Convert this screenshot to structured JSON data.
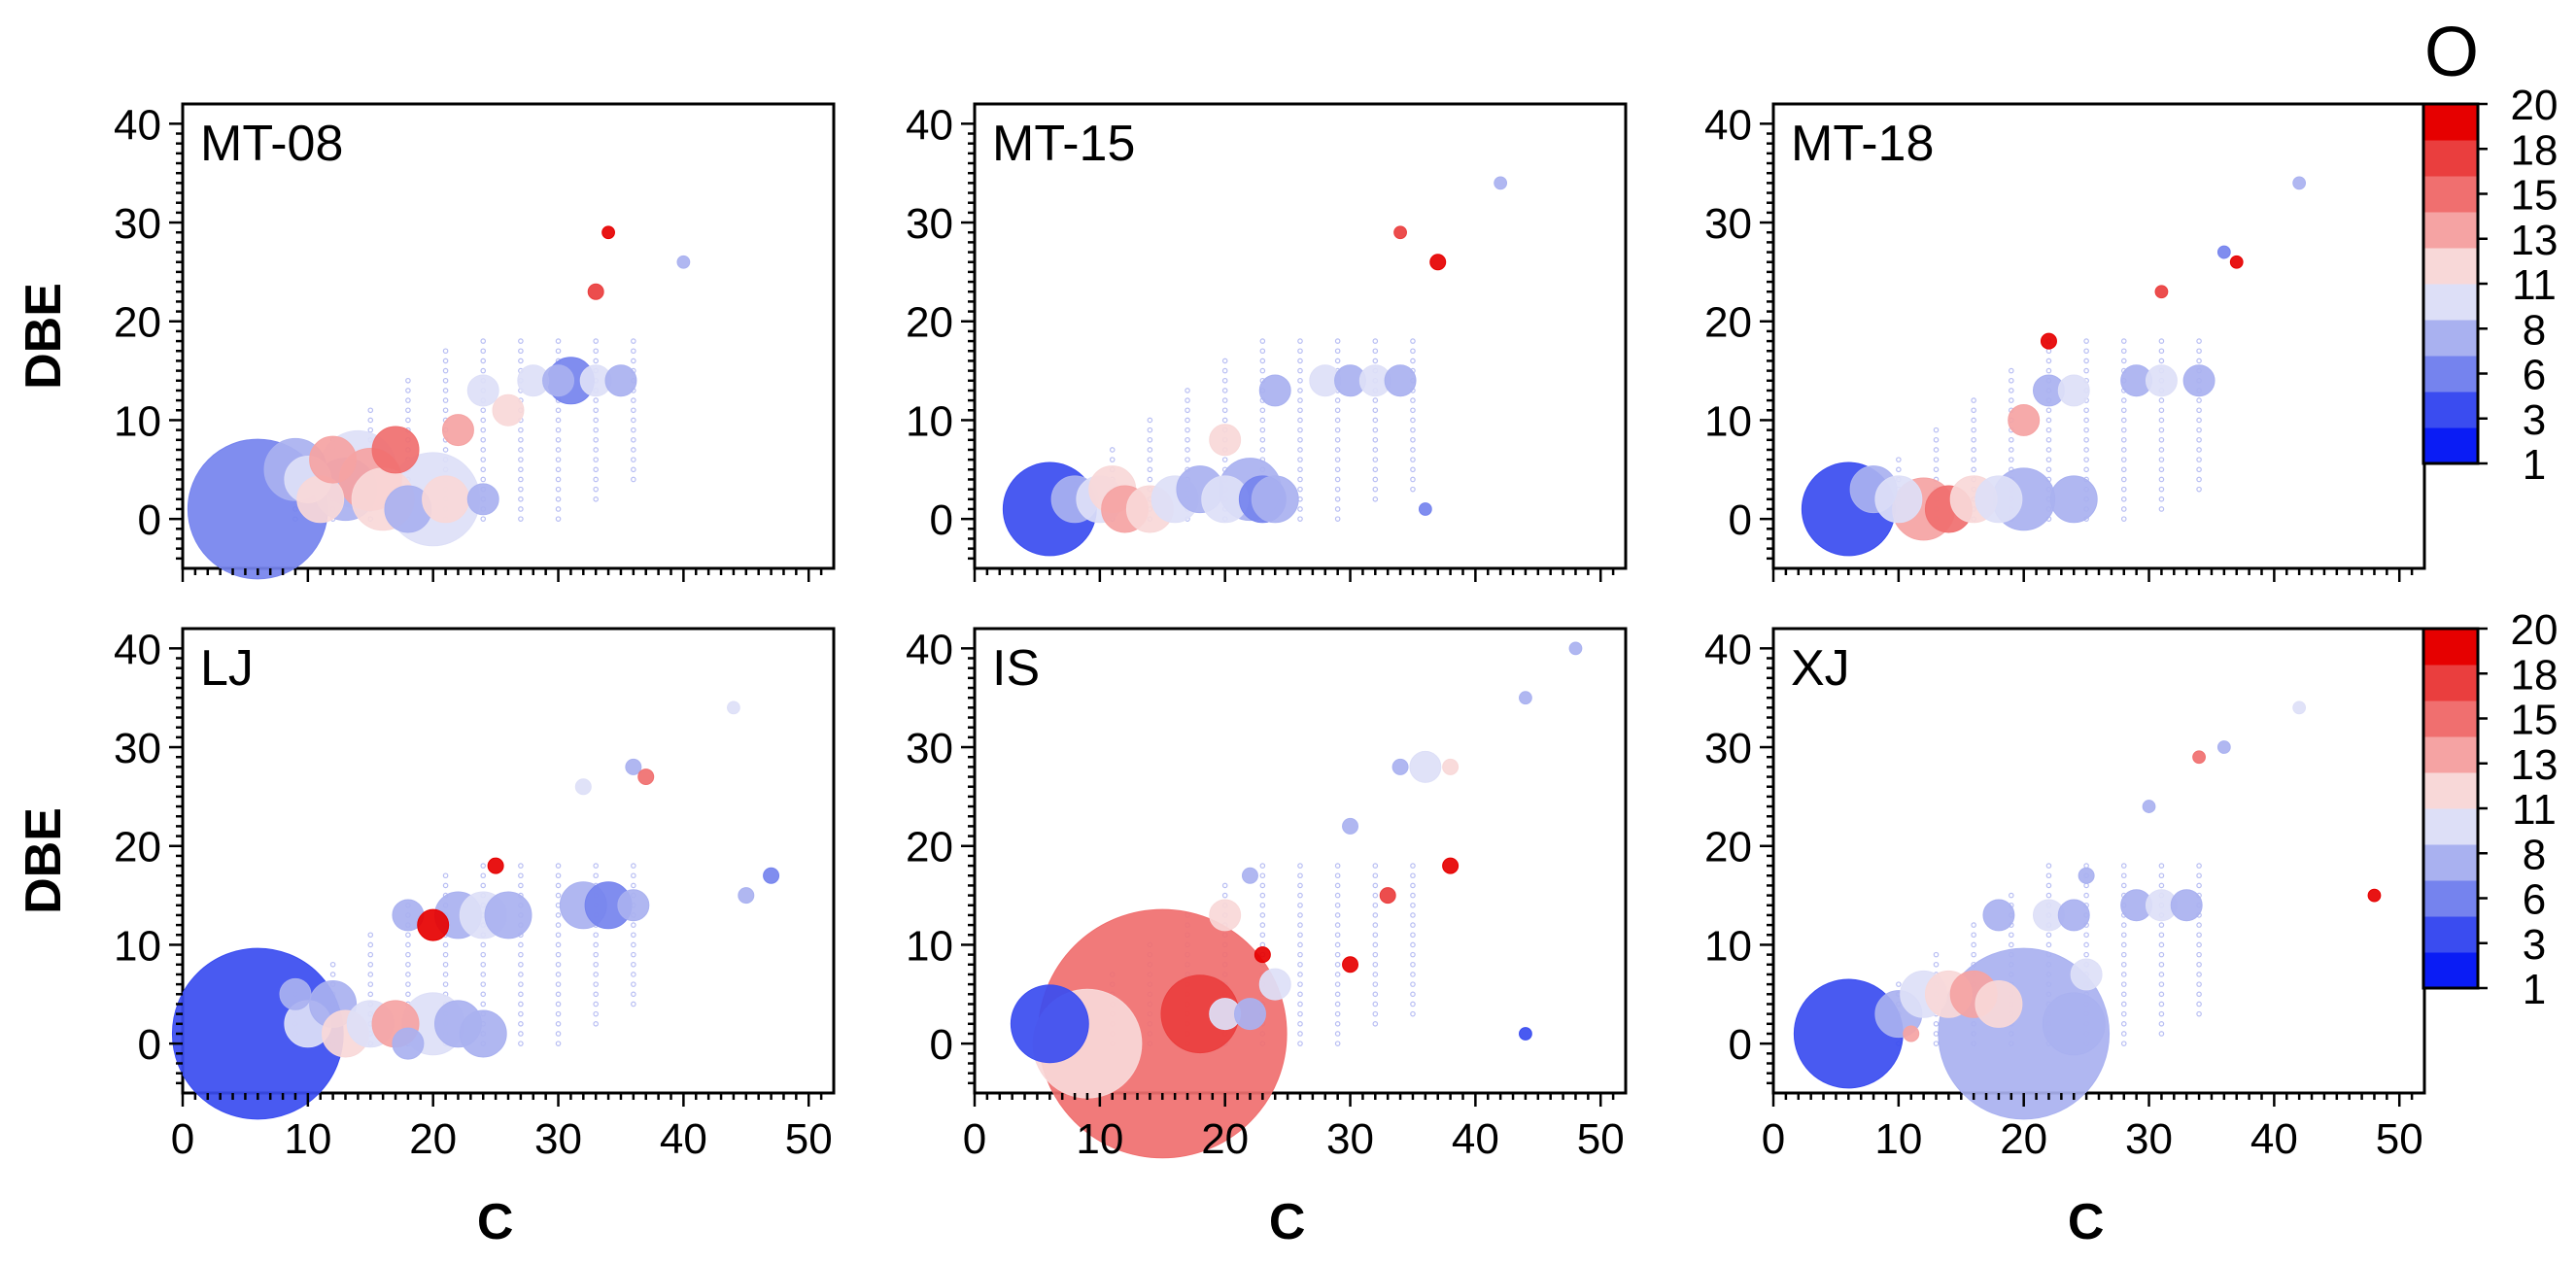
{
  "chart_data": {
    "type": "scatter",
    "subtype": "bubble",
    "x_axis": {
      "label": "C",
      "range": [
        0,
        52
      ],
      "ticks": [
        "0",
        "10",
        "20",
        "30",
        "40",
        "50"
      ]
    },
    "y_axis": {
      "label": "DBE",
      "range": [
        -5,
        42
      ],
      "ticks": [
        "0",
        "10",
        "20",
        "30",
        "40"
      ]
    },
    "colorbar": {
      "title": "O",
      "tick_labels": [
        "1",
        "3",
        "6",
        "8",
        "11",
        "13",
        "15",
        "18",
        "20"
      ],
      "colors": [
        "#0a1cf5",
        "#3a4cf0",
        "#7583ee",
        "#a9b1f0",
        "#dddff7",
        "#f8d8d8",
        "#f5a3a3",
        "#f06f6f",
        "#ea3e3e",
        "#e60000"
      ]
    },
    "panels": [
      {
        "label": "MT-08",
        "points": [
          [
            6,
            1,
            9,
            2
          ],
          [
            9,
            5,
            4,
            3
          ],
          [
            10,
            4,
            3,
            4
          ],
          [
            11,
            2,
            3,
            5
          ],
          [
            12,
            6,
            3,
            6
          ],
          [
            13,
            3,
            4,
            3
          ],
          [
            14,
            5,
            5,
            4
          ],
          [
            15,
            4,
            4,
            6
          ],
          [
            16,
            2,
            4,
            5
          ],
          [
            17,
            7,
            3,
            7
          ],
          [
            18,
            1,
            3,
            3
          ],
          [
            20,
            2,
            6,
            4
          ],
          [
            21,
            2,
            3,
            5
          ],
          [
            22,
            9,
            2,
            6
          ],
          [
            24,
            2,
            2,
            3
          ],
          [
            24,
            13,
            2,
            4
          ],
          [
            26,
            11,
            2,
            5
          ],
          [
            28,
            14,
            2,
            4
          ],
          [
            30,
            14,
            2,
            3
          ],
          [
            31,
            14,
            3,
            2
          ],
          [
            33,
            14,
            2,
            4
          ],
          [
            35,
            14,
            2,
            3
          ],
          [
            34,
            29,
            0.8,
            9
          ],
          [
            33,
            23,
            1,
            8
          ],
          [
            40,
            26,
            0.8,
            3
          ]
        ]
      },
      {
        "label": "MT-15",
        "points": [
          [
            6,
            1,
            6,
            1
          ],
          [
            8,
            2,
            3,
            3
          ],
          [
            10,
            2,
            3,
            4
          ],
          [
            11,
            3,
            3,
            5
          ],
          [
            12,
            1,
            3,
            6
          ],
          [
            14,
            1,
            3,
            5
          ],
          [
            16,
            2,
            3,
            4
          ],
          [
            18,
            3,
            3,
            3
          ],
          [
            20,
            2,
            3,
            4
          ],
          [
            22,
            3,
            4,
            3
          ],
          [
            23,
            2,
            3,
            2
          ],
          [
            24,
            2,
            3,
            3
          ],
          [
            20,
            8,
            2,
            5
          ],
          [
            24,
            13,
            2,
            3
          ],
          [
            28,
            14,
            2,
            4
          ],
          [
            30,
            14,
            2,
            3
          ],
          [
            32,
            14,
            2,
            4
          ],
          [
            34,
            14,
            2,
            3
          ],
          [
            37,
            26,
            1,
            9
          ],
          [
            34,
            29,
            0.8,
            8
          ],
          [
            42,
            34,
            0.8,
            3
          ],
          [
            36,
            1,
            0.8,
            2
          ]
        ]
      },
      {
        "label": "MT-18",
        "points": [
          [
            6,
            1,
            6,
            1
          ],
          [
            8,
            3,
            3,
            3
          ],
          [
            10,
            2,
            3,
            4
          ],
          [
            12,
            1,
            4,
            6
          ],
          [
            14,
            1,
            3,
            7
          ],
          [
            16,
            2,
            3,
            5
          ],
          [
            18,
            2,
            3,
            4
          ],
          [
            20,
            2,
            4,
            3
          ],
          [
            24,
            2,
            3,
            3
          ],
          [
            20,
            10,
            2,
            6
          ],
          [
            22,
            13,
            2,
            3
          ],
          [
            24,
            13,
            2,
            4
          ],
          [
            22,
            18,
            1,
            9
          ],
          [
            29,
            14,
            2,
            3
          ],
          [
            31,
            14,
            2,
            4
          ],
          [
            34,
            14,
            2,
            3
          ],
          [
            31,
            23,
            0.8,
            8
          ],
          [
            37,
            26,
            0.8,
            9
          ],
          [
            42,
            34,
            0.8,
            3
          ],
          [
            36,
            27,
            0.8,
            2
          ]
        ]
      },
      {
        "label": "LJ",
        "points": [
          [
            6,
            1,
            11,
            1
          ],
          [
            9,
            5,
            2,
            3
          ],
          [
            10,
            2,
            3,
            4
          ],
          [
            12,
            4,
            3,
            3
          ],
          [
            13,
            1,
            3,
            5
          ],
          [
            15,
            2,
            3,
            4
          ],
          [
            17,
            2,
            3,
            6
          ],
          [
            18,
            0,
            2,
            3
          ],
          [
            20,
            2,
            4,
            4
          ],
          [
            22,
            2,
            3,
            3
          ],
          [
            24,
            1,
            3,
            3
          ],
          [
            18,
            13,
            2,
            3
          ],
          [
            20,
            12,
            2,
            9
          ],
          [
            22,
            13,
            3,
            3
          ],
          [
            24,
            13,
            3,
            4
          ],
          [
            26,
            13,
            3,
            3
          ],
          [
            25,
            18,
            1,
            9
          ],
          [
            32,
            14,
            3,
            3
          ],
          [
            34,
            14,
            3,
            2
          ],
          [
            36,
            14,
            2,
            3
          ],
          [
            47,
            17,
            1,
            2
          ],
          [
            45,
            15,
            1,
            3
          ],
          [
            36,
            28,
            1,
            3
          ],
          [
            37,
            27,
            1,
            7
          ],
          [
            44,
            34,
            0.8,
            4
          ],
          [
            32,
            26,
            1,
            4
          ]
        ]
      },
      {
        "label": "IS",
        "points": [
          [
            6,
            2,
            5,
            1
          ],
          [
            9,
            0,
            7,
            5
          ],
          [
            15,
            1,
            16,
            7
          ],
          [
            18,
            3,
            5,
            8
          ],
          [
            20,
            3,
            2,
            4
          ],
          [
            22,
            3,
            2,
            3
          ],
          [
            20,
            13,
            2,
            5
          ],
          [
            22,
            17,
            1,
            3
          ],
          [
            24,
            6,
            2,
            4
          ],
          [
            30,
            8,
            1,
            9
          ],
          [
            33,
            15,
            1,
            8
          ],
          [
            34,
            28,
            1,
            3
          ],
          [
            36,
            28,
            2,
            4
          ],
          [
            38,
            28,
            1,
            5
          ],
          [
            48,
            40,
            0.8,
            3
          ],
          [
            44,
            35,
            0.8,
            3
          ],
          [
            44,
            1,
            0.8,
            1
          ],
          [
            30,
            22,
            1,
            3
          ],
          [
            38,
            18,
            1,
            9
          ],
          [
            23,
            9,
            1,
            9
          ]
        ]
      },
      {
        "label": "XJ",
        "points": [
          [
            6,
            1,
            7,
            1
          ],
          [
            10,
            3,
            3,
            3
          ],
          [
            12,
            5,
            3,
            4
          ],
          [
            14,
            5,
            3,
            5
          ],
          [
            16,
            5,
            3,
            6
          ],
          [
            18,
            4,
            3,
            5
          ],
          [
            20,
            1,
            11,
            3
          ],
          [
            24,
            2,
            4,
            3
          ],
          [
            25,
            7,
            2,
            4
          ],
          [
            18,
            13,
            2,
            3
          ],
          [
            22,
            13,
            2,
            4
          ],
          [
            24,
            13,
            2,
            3
          ],
          [
            25,
            17,
            1,
            3
          ],
          [
            29,
            14,
            2,
            3
          ],
          [
            31,
            14,
            2,
            4
          ],
          [
            33,
            14,
            2,
            3
          ],
          [
            36,
            30,
            0.8,
            3
          ],
          [
            34,
            29,
            0.8,
            7
          ],
          [
            42,
            34,
            0.8,
            4
          ],
          [
            30,
            24,
            0.8,
            3
          ],
          [
            48,
            15,
            0.8,
            9
          ],
          [
            11,
            1,
            1,
            6
          ]
        ]
      }
    ]
  }
}
